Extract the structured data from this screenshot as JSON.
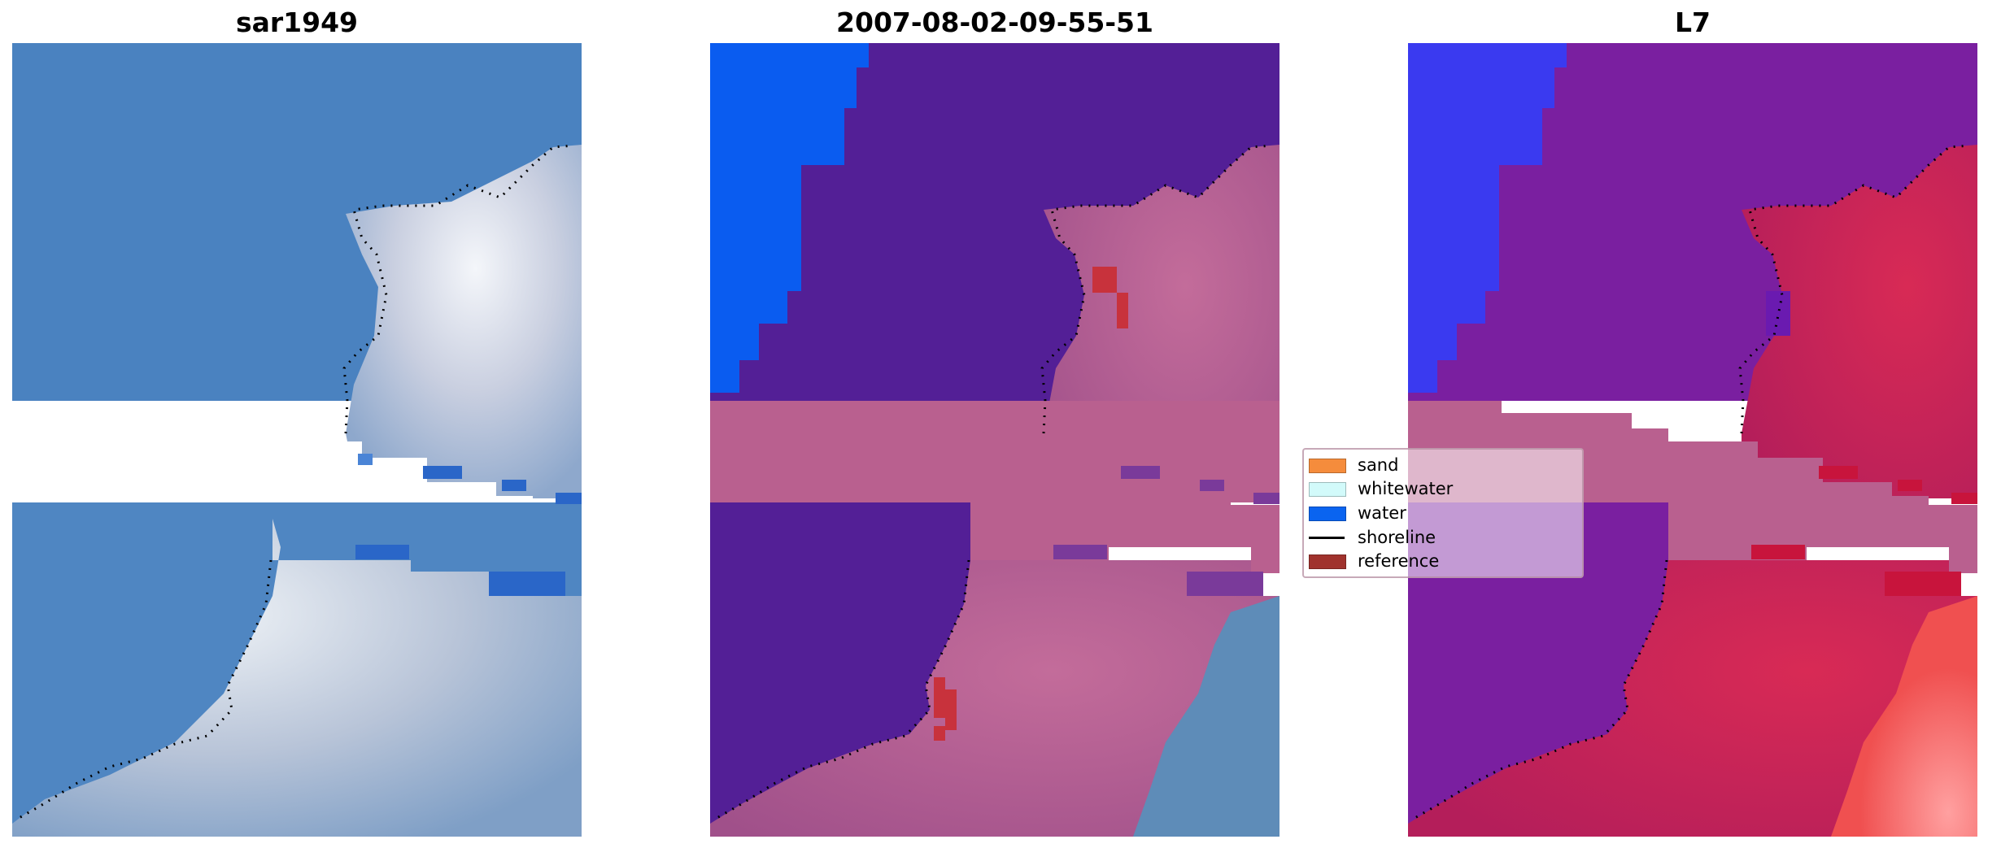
{
  "panels": [
    {
      "title": "sar1949"
    },
    {
      "title": "2007-08-02-09-55-51"
    },
    {
      "title": "L7"
    }
  ],
  "legend": {
    "items": [
      {
        "label": "sand",
        "color": "#f58c3c",
        "kind": "patch"
      },
      {
        "label": "whitewater",
        "color": "#d2fafa",
        "kind": "patch"
      },
      {
        "label": "water",
        "color": "#0a64f0",
        "kind": "patch"
      },
      {
        "label": "shoreline",
        "color": "#000000",
        "kind": "line"
      },
      {
        "label": "reference",
        "color": "#a0322d",
        "kind": "patch"
      }
    ]
  },
  "colors": {
    "sea_rgb": "#4a82c0",
    "surf_rgb": "#d6dae6",
    "sea_class": "#531f96",
    "open_water_class": "#0a5cf0",
    "land_class": "#b45a8c",
    "nodata_fill_class": "#b9608f",
    "reference_patch": "#c8323c",
    "sea_l7": "#7a1fa0",
    "land_l7": "#c81e50",
    "open_water_l7": "#3a3af0",
    "bright_l7": "#ff6a6a",
    "shoreline_dots": "#000000"
  }
}
